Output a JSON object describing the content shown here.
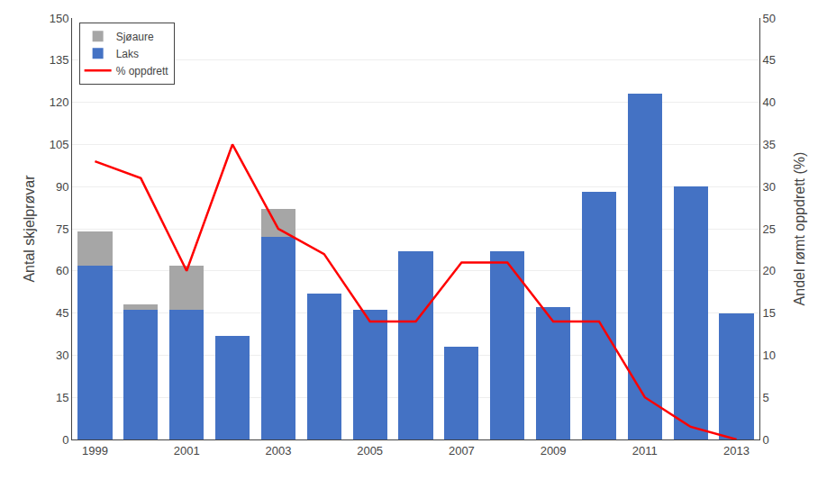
{
  "chart_data": {
    "type": "bar",
    "stacked": true,
    "x": [
      1999,
      2000,
      2001,
      2002,
      2003,
      2004,
      2005,
      2006,
      2007,
      2008,
      2009,
      2010,
      2011,
      2012,
      2013
    ],
    "xlim": [
      1998.5,
      2013.5
    ],
    "xticks": [
      1999,
      2001,
      2003,
      2005,
      2007,
      2009,
      2011,
      2013
    ],
    "ylabel": "Antal skjelprøvar",
    "ylim": [
      0,
      150
    ],
    "yticks": [
      0,
      15,
      30,
      45,
      60,
      75,
      90,
      105,
      120,
      135,
      150
    ],
    "y2label": "Andel rømt oppdrett (%)",
    "y2lim": [
      0,
      50
    ],
    "y2ticks": [
      0,
      5,
      10,
      15,
      20,
      25,
      30,
      35,
      40,
      45,
      50
    ],
    "grid": true,
    "legend": "upper left",
    "series": [
      {
        "name": "Sjøaure",
        "color": "#a6a6a6",
        "values": [
          12,
          2,
          16,
          0,
          10,
          0,
          0,
          0,
          0,
          0,
          0,
          0,
          0,
          0,
          0
        ]
      },
      {
        "name": "Laks",
        "color": "#4472c4",
        "values": [
          62,
          46,
          46,
          37,
          72,
          52,
          46,
          67,
          33,
          67,
          47,
          88,
          123,
          90,
          45
        ]
      },
      {
        "name": "% oppdrett",
        "type": "line",
        "axis": "y2",
        "color": "#ff0000",
        "values": [
          33,
          31,
          20,
          35,
          25,
          22,
          14,
          14,
          21,
          21,
          14,
          14,
          5,
          1.5,
          0
        ]
      }
    ]
  }
}
